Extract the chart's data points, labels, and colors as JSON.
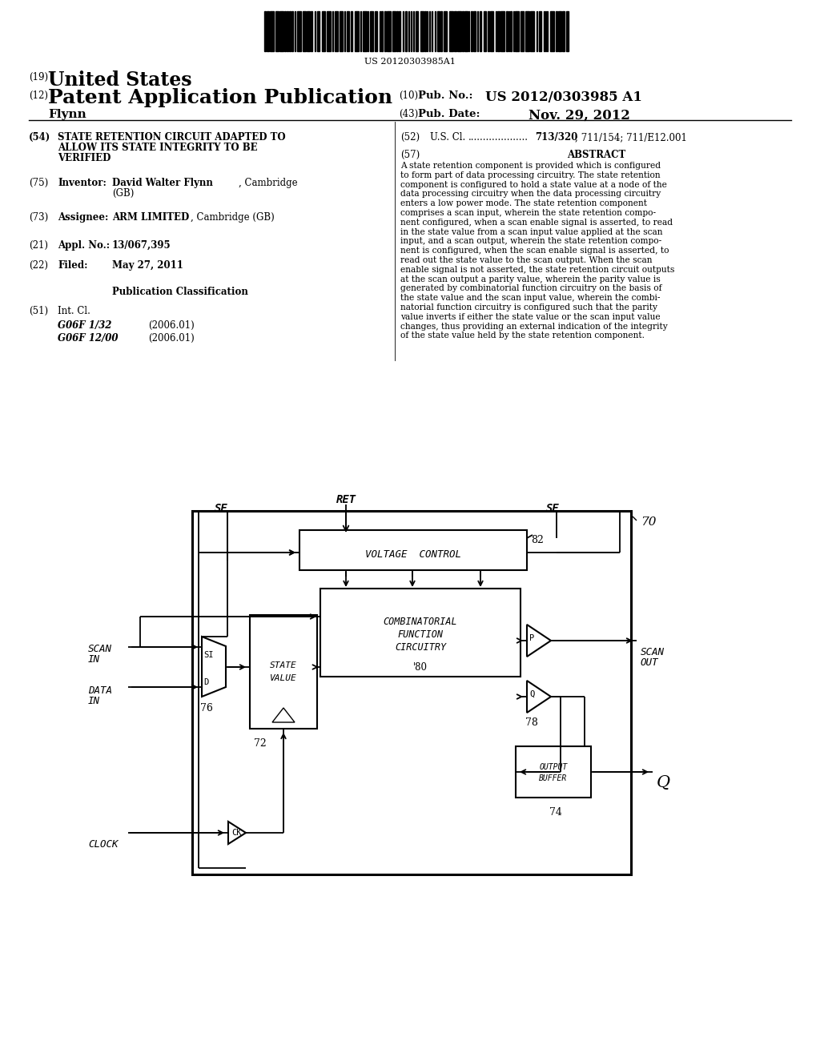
{
  "bg_color": "#ffffff",
  "barcode_text": "US 20120303985A1",
  "abstract_lines": [
    "A state retention component is provided which is configured",
    "to form part of data processing circuitry. The state retention",
    "component is configured to hold a state value at a node of the",
    "data processing circuitry when the data processing circuitry",
    "enters a low power mode. The state retention component",
    "comprises a scan input, wherein the state retention compo-",
    "nent configured, when a scan enable signal is asserted, to read",
    "in the state value from a scan input value applied at the scan",
    "input, and a scan output, wherein the state retention compo-",
    "nent is configured, when the scan enable signal is asserted, to",
    "read out the state value to the scan output. When the scan",
    "enable signal is not asserted, the state retention circuit outputs",
    "at the scan output a parity value, wherein the parity value is",
    "generated by combinatorial function circuitry on the basis of",
    "the state value and the scan input value, wherein the combi-",
    "natorial function circuitry is configured such that the parity",
    "value inverts if either the state value or the scan input value",
    "changes, thus providing an external indication of the integrity",
    "of the state value held by the state retention component."
  ]
}
